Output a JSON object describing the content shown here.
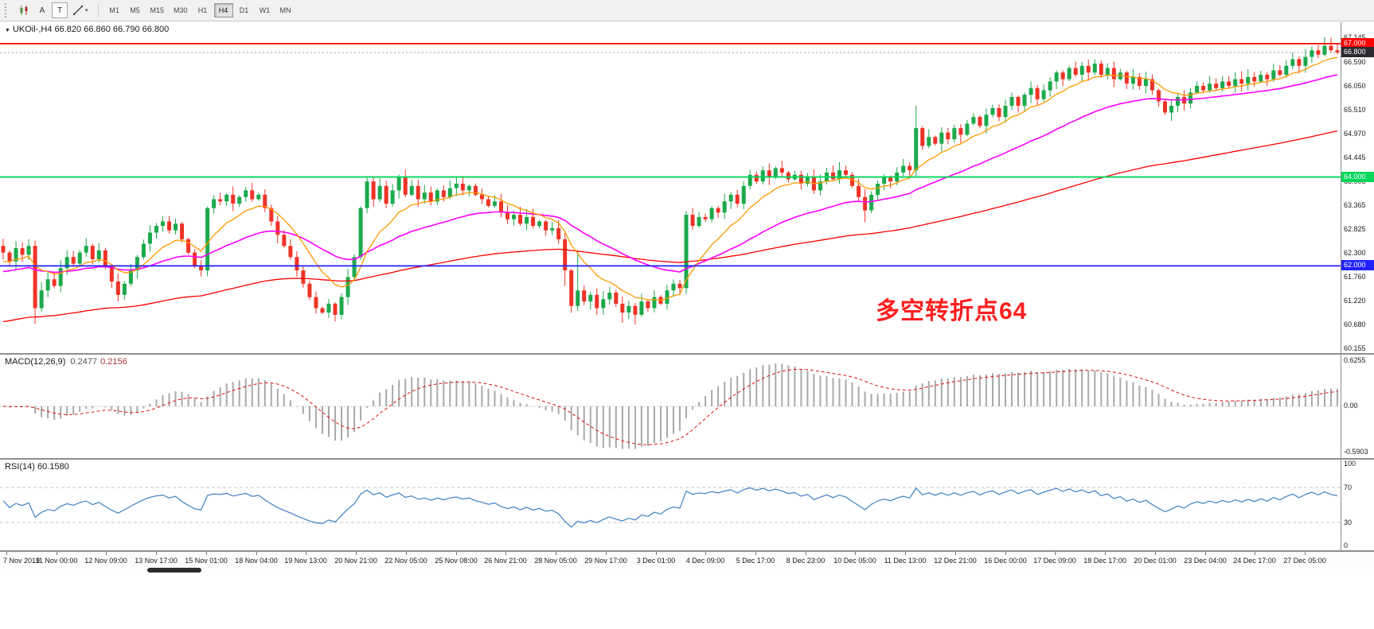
{
  "icons": {
    "caret": "▾",
    "collapse": "▼"
  },
  "toolbar": {
    "annotate_tool": "A",
    "text_tool": "T",
    "timeframes": [
      "M1",
      "M5",
      "M15",
      "M30",
      "H1",
      "H4",
      "D1",
      "W1",
      "MN"
    ],
    "selected_timeframe": "H4"
  },
  "main_chart": {
    "header_symbol": "UKOil-,H4",
    "header_ohlc": "66.820 66.860 66.790 66.800",
    "annotation": "多空转折点64",
    "price_max": 67.48,
    "price_min": 60.04,
    "y_ticks": [
      "67.145",
      "66.590",
      "66.050",
      "65.510",
      "64.970",
      "64.445",
      "63.905",
      "63.365",
      "62.825",
      "62.300",
      "61.760",
      "61.220",
      "60.680",
      "60.155"
    ],
    "levels": [
      {
        "label": "67.000",
        "price": 67.0,
        "color": "#ff0000",
        "style": "solid"
      },
      {
        "label": "66.800",
        "price": 66.8,
        "color": "#999999",
        "box": "#2b2b33",
        "style": "dotted",
        "current": true
      },
      {
        "label": "64.000",
        "price": 64.0,
        "color": "#00d75a",
        "style": "solid"
      },
      {
        "label": "62.000",
        "price": 62.0,
        "color": "#2222ff",
        "style": "solid"
      }
    ],
    "colors": {
      "up": "#1ca94c",
      "down": "#ee3326",
      "ma_fast": "#ff9900",
      "ma_mid": "#ff00ff",
      "ma_slow": "#ff0000"
    }
  },
  "macd_panel": {
    "title": "MACD(12,26,9)",
    "value_main": "0.2477",
    "value_signal": "0.2156",
    "y_ticks": [
      "0.6255",
      "0.00",
      "-0.5903"
    ],
    "range_abs": 0.656
  },
  "rsi_panel": {
    "title": "RSI(14)",
    "value": "60.1580",
    "y_ticks": [
      "100",
      "70",
      "30",
      "0"
    ],
    "levels": [
      70,
      30
    ]
  },
  "time_axis": {
    "labels": [
      "7 Nov 2019",
      "11 Nov 00:00",
      "12 Nov 09:00",
      "13 Nov 17:00",
      "15 Nov 01:00",
      "18 Nov 04:00",
      "19 Nov 13:00",
      "20 Nov 21:00",
      "22 Nov 05:00",
      "25 Nov 08:00",
      "26 Nov 21:00",
      "28 Nov 05:00",
      "29 Nov 17:00",
      "3 Dec 01:00",
      "4 Dec 09:00",
      "5 Dec 17:00",
      "8 Dec 23:00",
      "10 Dec 05:00",
      "11 Dec 13:00",
      "12 Dec 21:00",
      "16 Dec 00:00",
      "17 Dec 09:00",
      "18 Dec 17:00",
      "20 Dec 01:00",
      "23 Dec 04:00",
      "24 Dec 17:00",
      "27 Dec 05:00"
    ]
  },
  "chart_data": {
    "type": "candlestick",
    "symbol": "UKOil-",
    "period": "H4",
    "current_bar": {
      "open": 66.82,
      "high": 66.86,
      "low": 66.79,
      "close": 66.8
    },
    "closes": [
      62.3,
      62.1,
      62.4,
      62.25,
      62.45,
      61.05,
      61.45,
      61.7,
      61.55,
      61.95,
      62.2,
      62.05,
      62.3,
      62.45,
      62.15,
      62.35,
      62.0,
      61.65,
      61.35,
      61.6,
      61.9,
      62.2,
      62.5,
      62.75,
      62.9,
      63.0,
      62.8,
      62.95,
      62.6,
      62.3,
      62.0,
      61.9,
      63.3,
      63.5,
      63.45,
      63.6,
      63.4,
      63.55,
      63.7,
      63.5,
      63.6,
      63.3,
      63.0,
      62.7,
      62.45,
      62.2,
      61.9,
      61.6,
      61.3,
      61.05,
      60.95,
      61.15,
      60.9,
      61.3,
      61.75,
      62.2,
      63.3,
      63.9,
      63.5,
      63.8,
      63.4,
      63.7,
      64.0,
      63.6,
      63.8,
      63.5,
      63.65,
      63.45,
      63.7,
      63.55,
      63.75,
      63.85,
      63.7,
      63.8,
      63.6,
      63.5,
      63.35,
      63.45,
      63.2,
      63.05,
      63.15,
      62.95,
      63.1,
      62.9,
      63.0,
      62.8,
      62.85,
      62.6,
      61.9,
      61.1,
      61.45,
      61.2,
      61.35,
      61.05,
      61.25,
      61.4,
      61.15,
      60.95,
      61.1,
      60.9,
      61.2,
      61.05,
      61.3,
      61.15,
      61.45,
      61.6,
      61.5,
      63.15,
      62.9,
      63.1,
      63.05,
      63.3,
      63.2,
      63.45,
      63.6,
      63.4,
      63.8,
      64.05,
      63.9,
      64.15,
      64.0,
      64.2,
      64.1,
      63.95,
      64.05,
      63.85,
      64.0,
      63.7,
      63.9,
      64.1,
      63.95,
      64.15,
      64.05,
      63.8,
      63.55,
      63.25,
      63.6,
      63.85,
      64.0,
      63.9,
      64.1,
      64.25,
      64.15,
      65.1,
      64.7,
      64.9,
      64.75,
      65.0,
      64.85,
      65.1,
      64.95,
      65.2,
      65.35,
      65.15,
      65.4,
      65.55,
      65.35,
      65.6,
      65.8,
      65.6,
      65.85,
      66.0,
      65.75,
      65.95,
      66.15,
      66.35,
      66.2,
      66.45,
      66.3,
      66.5,
      66.35,
      66.55,
      66.3,
      66.45,
      66.2,
      66.35,
      66.1,
      66.25,
      66.05,
      66.2,
      65.95,
      65.7,
      65.45,
      65.6,
      65.8,
      65.65,
      65.9,
      66.05,
      65.95,
      66.1,
      66.0,
      66.15,
      66.05,
      66.2,
      66.1,
      66.25,
      66.15,
      66.3,
      66.2,
      66.4,
      66.3,
      66.5,
      66.65,
      66.5,
      66.7,
      66.85,
      66.75,
      66.95,
      66.85,
      66.8
    ],
    "wick_overrides": {
      "5": {
        "low": 60.7
      },
      "52": {
        "low": 60.75
      },
      "88": {
        "low": 61.55
      },
      "90": {
        "high": 62.35
      },
      "97": {
        "low": 60.72
      },
      "99": {
        "low": 60.68
      },
      "135": {
        "low": 62.98
      },
      "143": {
        "high": 65.6
      },
      "207": {
        "high": 67.145
      }
    },
    "indicators": {
      "ma_fast_period": 10,
      "ma_mid_period": 34,
      "ma_slow_period": 120,
      "macd": [
        12,
        26,
        9
      ],
      "rsi_period": 14
    }
  }
}
